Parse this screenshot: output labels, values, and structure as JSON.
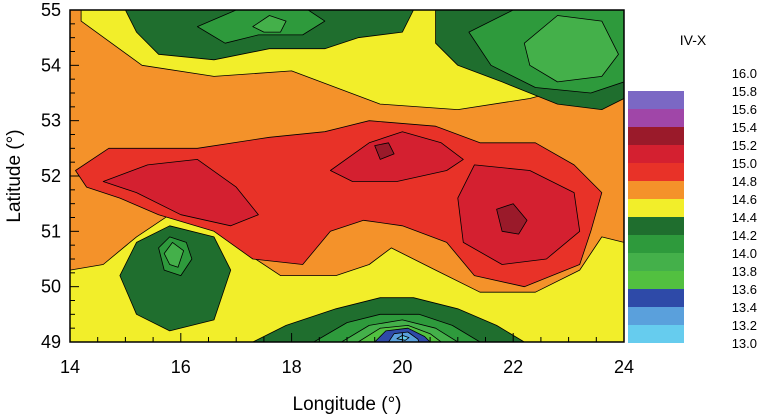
{
  "chart_data": {
    "type": "heatmap",
    "subtype": "filled-contour-map",
    "xlabel": "Longitude (°)",
    "ylabel": "Latitude (°)",
    "xlim": [
      14,
      24
    ],
    "ylim": [
      49,
      55
    ],
    "x_ticks": [
      "14",
      "16",
      "18",
      "20",
      "22",
      "24"
    ],
    "y_ticks": [
      "49",
      "50",
      "51",
      "52",
      "53",
      "54",
      "55"
    ],
    "x_minor_step": 0.5,
    "y_minor_step": 0.25,
    "grid": false,
    "legend": {
      "placement": "right",
      "title": "IV-X",
      "levels": [
        "16.0",
        "15.8",
        "15.6",
        "15.4",
        "15.2",
        "15.0",
        "14.8",
        "14.6",
        "14.4",
        "14.2",
        "14.0",
        "13.8",
        "13.6",
        "13.4",
        "13.2",
        "13.0"
      ],
      "bands": [
        {
          "from": 15.8,
          "to": 16.0,
          "color": "#ffffff"
        },
        {
          "from": 15.6,
          "to": 15.8,
          "color": "#7b68c4"
        },
        {
          "from": 15.4,
          "to": 15.6,
          "color": "#a046a8"
        },
        {
          "from": 15.2,
          "to": 15.4,
          "color": "#9a1a2a"
        },
        {
          "from": 15.0,
          "to": 15.2,
          "color": "#d42030"
        },
        {
          "from": 14.8,
          "to": 15.0,
          "color": "#e83228"
        },
        {
          "from": 14.6,
          "to": 14.8,
          "color": "#f4922a"
        },
        {
          "from": 14.4,
          "to": 14.6,
          "color": "#f2ee2a"
        },
        {
          "from": 14.2,
          "to": 14.4,
          "color": "#1f6e2e"
        },
        {
          "from": 14.0,
          "to": 14.2,
          "color": "#2e9a3c"
        },
        {
          "from": 13.8,
          "to": 14.0,
          "color": "#44b04a"
        },
        {
          "from": 13.6,
          "to": 13.8,
          "color": "#52c040"
        },
        {
          "from": 13.4,
          "to": 13.6,
          "color": "#2e4aa8"
        },
        {
          "from": 13.2,
          "to": 13.4,
          "color": "#5aa0dc"
        },
        {
          "from": 13.0,
          "to": 13.2,
          "color": "#66ccee"
        }
      ]
    },
    "regions": [
      {
        "band": "14.6-14.8",
        "color": "#f4922a",
        "points": [
          [
            14,
            49
          ],
          [
            24,
            49
          ],
          [
            24,
            55
          ],
          [
            14,
            55
          ]
        ]
      },
      {
        "band": "14.4-14.6",
        "color": "#f2ee2a",
        "points": [
          [
            14,
            50.3
          ],
          [
            14.6,
            50.4
          ],
          [
            15.2,
            50.9
          ],
          [
            15.8,
            51.3
          ],
          [
            16.6,
            51.2
          ],
          [
            17.2,
            50.6
          ],
          [
            17.8,
            50.2
          ],
          [
            18.8,
            50.2
          ],
          [
            19.4,
            50.4
          ],
          [
            19.8,
            50.7
          ],
          [
            20.6,
            50.3
          ],
          [
            21.4,
            49.9
          ],
          [
            22.4,
            49.9
          ],
          [
            23.2,
            50.3
          ],
          [
            23.6,
            50.9
          ],
          [
            24,
            50.8
          ],
          [
            24,
            49
          ],
          [
            14,
            49
          ]
        ]
      },
      {
        "band": "14.4-14.6",
        "color": "#f2ee2a",
        "points": [
          [
            14.2,
            54.8
          ],
          [
            15.3,
            54.0
          ],
          [
            16.6,
            53.8
          ],
          [
            18,
            53.9
          ],
          [
            19.6,
            53.3
          ],
          [
            21.0,
            53.2
          ],
          [
            22.3,
            53.4
          ],
          [
            23.4,
            53.7
          ],
          [
            24,
            54.1
          ],
          [
            24,
            55
          ],
          [
            14.2,
            55
          ]
        ]
      },
      {
        "band": "14.8-15.0",
        "color": "#e83228",
        "points": [
          [
            14.1,
            52.1
          ],
          [
            14.7,
            52.5
          ],
          [
            16.3,
            52.5
          ],
          [
            17.6,
            52.7
          ],
          [
            18.6,
            52.8
          ],
          [
            19.4,
            53.0
          ],
          [
            20.6,
            52.9
          ],
          [
            21.4,
            52.6
          ],
          [
            22.4,
            52.6
          ],
          [
            23.1,
            52.2
          ],
          [
            23.6,
            51.7
          ],
          [
            23.4,
            51.0
          ],
          [
            23.2,
            50.4
          ],
          [
            22.2,
            50.0
          ],
          [
            21.3,
            50.2
          ],
          [
            20.8,
            50.8
          ],
          [
            20.0,
            51.1
          ],
          [
            19.3,
            51.2
          ],
          [
            18.7,
            51.0
          ],
          [
            18.2,
            50.4
          ],
          [
            17.3,
            50.5
          ],
          [
            16.6,
            51.0
          ],
          [
            15.6,
            51.3
          ],
          [
            14.9,
            51.6
          ],
          [
            14.3,
            51.8
          ]
        ]
      },
      {
        "band": "15.0-15.2",
        "color": "#d42030",
        "points": [
          [
            14.6,
            51.9
          ],
          [
            15.4,
            52.2
          ],
          [
            16.3,
            52.3
          ],
          [
            17.0,
            51.8
          ],
          [
            17.4,
            51.3
          ],
          [
            16.9,
            51.1
          ],
          [
            16.0,
            51.3
          ],
          [
            15.2,
            51.7
          ]
        ]
      },
      {
        "band": "15.0-15.2",
        "color": "#d42030",
        "points": [
          [
            18.7,
            52.1
          ],
          [
            19.4,
            52.6
          ],
          [
            20.0,
            52.8
          ],
          [
            20.7,
            52.6
          ],
          [
            21.1,
            52.3
          ],
          [
            20.8,
            52.1
          ],
          [
            19.9,
            51.9
          ],
          [
            19.1,
            51.9
          ]
        ]
      },
      {
        "band": "15.0-15.2",
        "color": "#d42030",
        "points": [
          [
            21.3,
            52.2
          ],
          [
            22.3,
            52.1
          ],
          [
            23.1,
            51.7
          ],
          [
            23.2,
            51.0
          ],
          [
            22.6,
            50.5
          ],
          [
            21.8,
            50.4
          ],
          [
            21.1,
            50.8
          ],
          [
            21.0,
            51.6
          ]
        ]
      },
      {
        "band": "15.2-15.4",
        "color": "#9a1a2a",
        "points": [
          [
            19.5,
            52.55
          ],
          [
            19.75,
            52.6
          ],
          [
            19.85,
            52.4
          ],
          [
            19.6,
            52.3
          ]
        ]
      },
      {
        "band": "15.2-15.4",
        "color": "#9a1a2a",
        "points": [
          [
            21.7,
            51.4
          ],
          [
            22.0,
            51.5
          ],
          [
            22.25,
            51.2
          ],
          [
            22.1,
            50.95
          ],
          [
            21.8,
            51.0
          ]
        ]
      },
      {
        "band": "14.2-14.4",
        "color": "#1f6e2e",
        "points": [
          [
            15.0,
            55
          ],
          [
            20.2,
            55
          ],
          [
            20.0,
            54.6
          ],
          [
            19.2,
            54.5
          ],
          [
            18.6,
            54.3
          ],
          [
            17.6,
            54.3
          ],
          [
            16.6,
            54.1
          ],
          [
            15.6,
            54.2
          ],
          [
            15.2,
            54.6
          ]
        ]
      },
      {
        "band": "14.2-14.4",
        "color": "#1f6e2e",
        "points": [
          [
            20.6,
            55
          ],
          [
            24,
            55
          ],
          [
            24,
            53.4
          ],
          [
            23.6,
            53.2
          ],
          [
            22.8,
            53.3
          ],
          [
            21.8,
            53.7
          ],
          [
            21.0,
            54.0
          ],
          [
            20.6,
            54.4
          ]
        ]
      },
      {
        "band": "14.0-14.2",
        "color": "#2e9a3c",
        "points": [
          [
            16.3,
            54.7
          ],
          [
            17.0,
            55
          ],
          [
            18.3,
            55
          ],
          [
            18.6,
            54.8
          ],
          [
            18.2,
            54.55
          ],
          [
            17.4,
            54.55
          ],
          [
            16.8,
            54.4
          ]
        ]
      },
      {
        "band": "14.0-14.2",
        "color": "#2e9a3c",
        "points": [
          [
            21.2,
            54.6
          ],
          [
            22.0,
            55
          ],
          [
            24,
            55
          ],
          [
            24,
            53.7
          ],
          [
            23.4,
            53.5
          ],
          [
            22.4,
            53.6
          ],
          [
            21.6,
            54.0
          ]
        ]
      },
      {
        "band": "13.8-14.0",
        "color": "#44b04a",
        "points": [
          [
            22.2,
            54.4
          ],
          [
            22.8,
            54.9
          ],
          [
            23.6,
            54.8
          ],
          [
            23.9,
            54.2
          ],
          [
            23.6,
            53.8
          ],
          [
            22.8,
            53.7
          ],
          [
            22.3,
            54.0
          ]
        ]
      },
      {
        "band": "13.8-14.0",
        "color": "#44b04a",
        "points": [
          [
            17.3,
            54.7
          ],
          [
            17.6,
            54.9
          ],
          [
            17.9,
            54.8
          ],
          [
            17.8,
            54.6
          ],
          [
            17.5,
            54.6
          ]
        ]
      },
      {
        "band": "14.2-14.4",
        "color": "#1f6e2e",
        "points": [
          [
            14.9,
            50.2
          ],
          [
            15.2,
            50.8
          ],
          [
            15.8,
            51.1
          ],
          [
            16.6,
            50.9
          ],
          [
            16.9,
            50.3
          ],
          [
            16.6,
            49.4
          ],
          [
            15.8,
            49.2
          ],
          [
            15.2,
            49.5
          ]
        ]
      },
      {
        "band": "14.0-14.2",
        "color": "#2e9a3c",
        "points": [
          [
            15.6,
            50.7
          ],
          [
            15.8,
            50.9
          ],
          [
            16.1,
            50.8
          ],
          [
            16.2,
            50.5
          ],
          [
            16.0,
            50.2
          ],
          [
            15.7,
            50.3
          ]
        ]
      },
      {
        "band": "13.8-14.0",
        "color": "#44b04a",
        "points": [
          [
            15.7,
            50.6
          ],
          [
            15.85,
            50.8
          ],
          [
            16.05,
            50.65
          ],
          [
            15.95,
            50.35
          ],
          [
            15.8,
            50.4
          ]
        ]
      },
      {
        "band": "14.2-14.4",
        "color": "#1f6e2e",
        "points": [
          [
            17.3,
            49
          ],
          [
            17.9,
            49.3
          ],
          [
            18.8,
            49.6
          ],
          [
            19.6,
            49.8
          ],
          [
            20.2,
            49.8
          ],
          [
            21.0,
            49.6
          ],
          [
            21.7,
            49.3
          ],
          [
            22.2,
            49
          ]
        ]
      },
      {
        "band": "14.0-14.2",
        "color": "#2e9a3c",
        "points": [
          [
            18.4,
            49
          ],
          [
            19.0,
            49.35
          ],
          [
            19.6,
            49.5
          ],
          [
            20.3,
            49.5
          ],
          [
            20.9,
            49.3
          ],
          [
            21.4,
            49
          ]
        ]
      },
      {
        "band": "13.8-14.0",
        "color": "#44b04a",
        "points": [
          [
            18.9,
            49
          ],
          [
            19.4,
            49.3
          ],
          [
            20.0,
            49.4
          ],
          [
            20.6,
            49.25
          ],
          [
            21.0,
            49
          ]
        ]
      },
      {
        "band": "13.6-13.8",
        "color": "#52c040",
        "points": [
          [
            19.2,
            49
          ],
          [
            19.6,
            49.25
          ],
          [
            20.1,
            49.3
          ],
          [
            20.5,
            49.15
          ],
          [
            20.7,
            49
          ]
        ]
      },
      {
        "band": "13.4-13.6",
        "color": "#2e4aa8",
        "points": [
          [
            19.5,
            49
          ],
          [
            19.7,
            49.2
          ],
          [
            20.1,
            49.25
          ],
          [
            20.4,
            49.1
          ],
          [
            20.5,
            49
          ]
        ]
      },
      {
        "band": "13.2-13.4",
        "color": "#5aa0dc",
        "points": [
          [
            19.75,
            49
          ],
          [
            19.85,
            49.15
          ],
          [
            20.1,
            49.18
          ],
          [
            20.28,
            49.05
          ],
          [
            20.3,
            49
          ]
        ]
      },
      {
        "band": "13.0-13.2",
        "color": "#66ccee",
        "points": [
          [
            19.9,
            49.06
          ],
          [
            20.0,
            49.12
          ],
          [
            20.12,
            49.08
          ],
          [
            20.05,
            49.03
          ]
        ]
      }
    ]
  }
}
